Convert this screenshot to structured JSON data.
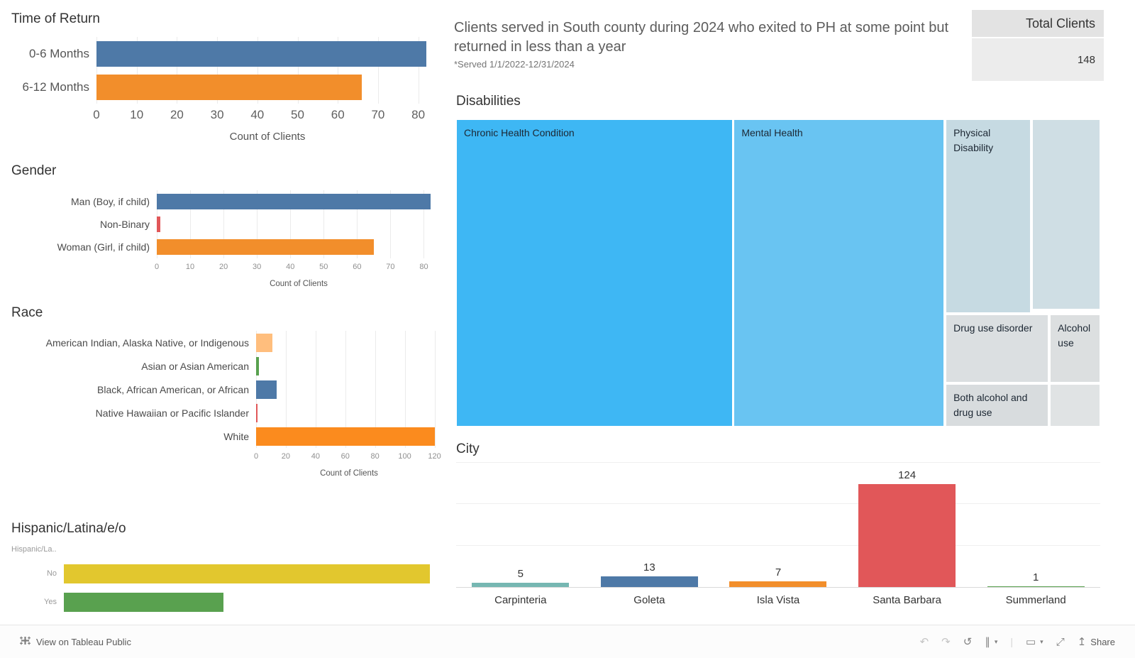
{
  "header": {
    "title": "Clients served in South county during 2024 who exited  to PH at some point but returned in less than a year",
    "subtitle": "*Served 1/1/2022-12/31/2024"
  },
  "total_clients": {
    "label": "Total Clients",
    "value": "148"
  },
  "footer": {
    "view_on_tableau": "View on Tableau Public",
    "share": "Share",
    "icons": {
      "undo": "↶",
      "redo": "↷",
      "replay": "↺",
      "pause": "∥",
      "caret": "▾",
      "divider": "|",
      "display": "▭",
      "fullscreen": "⤢",
      "share_arrow": "↥"
    }
  },
  "chart_data": [
    {
      "type": "bar",
      "orientation": "horizontal",
      "title": "Time of Return",
      "categories": [
        "0-6 Months",
        "6-12 Months"
      ],
      "values": [
        82,
        66
      ],
      "colors": [
        "#4e79a7",
        "#f28e2b"
      ],
      "xlabel": "Count of Clients",
      "xlim": [
        0,
        85
      ],
      "xticks": [
        0,
        10,
        20,
        30,
        40,
        50,
        60,
        70,
        80
      ],
      "grid": true
    },
    {
      "type": "bar",
      "orientation": "horizontal",
      "title": "Gender",
      "categories": [
        "Man (Boy, if child)",
        "Non-Binary",
        "Woman (Girl, if child)"
      ],
      "values": [
        82,
        1,
        65
      ],
      "colors": [
        "#4e79a7",
        "#e15759",
        "#f28e2b"
      ],
      "xlabel": "Count of Clients",
      "xlim": [
        0,
        85
      ],
      "xticks": [
        0,
        10,
        20,
        30,
        40,
        50,
        60,
        70,
        80
      ],
      "grid": true
    },
    {
      "type": "bar",
      "orientation": "horizontal",
      "title": "Race",
      "categories": [
        "American Indian, Alaska Native, or Indigenous",
        "Asian or Asian American",
        "Black, African American, or African",
        "Native Hawaiian or Pacific Islander",
        "White"
      ],
      "values": [
        11,
        2,
        14,
        1,
        120
      ],
      "colors": [
        "#ffbe7d",
        "#59a14f",
        "#4e79a7",
        "#e15759",
        "#fb8b1e"
      ],
      "xlabel": "Count of Clients",
      "xlim": [
        0,
        125
      ],
      "xticks": [
        0,
        20,
        40,
        60,
        80,
        100,
        120
      ],
      "grid": true
    },
    {
      "type": "bar",
      "orientation": "horizontal",
      "title": "Hispanic/Latina/e/o",
      "row_header": "Hispanic/La..",
      "categories": [
        "No",
        "Yes"
      ],
      "values": [
        103,
        45
      ],
      "values_note": "estimated from bar lengths; no axis labels visible",
      "colors": [
        "#e2c72e",
        "#59a14f"
      ],
      "xlabel": "",
      "xlim": [
        0,
        107
      ],
      "xticks": [],
      "grid": false
    },
    {
      "type": "treemap",
      "title": "Disabilities",
      "blocks": [
        {
          "label": "Chronic Health Condition",
          "x": 0,
          "y": 0,
          "w": 42.9,
          "h": 100,
          "color": "#3eb7f4"
        },
        {
          "label": "Mental Health",
          "x": 43.1,
          "y": 0,
          "w": 32.7,
          "h": 100,
          "color": "#69c4f2"
        },
        {
          "label": "Physical Disability",
          "x": 76.0,
          "y": 0,
          "w": 13.2,
          "h": 63.0,
          "color": "#c6dae2"
        },
        {
          "label": "",
          "x": 89.4,
          "y": 0,
          "w": 10.6,
          "h": 61.9,
          "color": "#cfdee4"
        },
        {
          "label": "Drug use disorder",
          "x": 76.0,
          "y": 63.5,
          "w": 16.0,
          "h": 22.2,
          "color": "#dbdfe1"
        },
        {
          "label": "Alcohol use",
          "x": 92.2,
          "y": 63.5,
          "w": 7.8,
          "h": 22.2,
          "color": "#dcdfe0"
        },
        {
          "label": "Both alcohol and drug use",
          "x": 76.0,
          "y": 86.2,
          "w": 16.0,
          "h": 13.8,
          "color": "#d8dcde"
        },
        {
          "label": "",
          "x": 92.2,
          "y": 86.2,
          "w": 7.8,
          "h": 13.8,
          "color": "#e0e3e4"
        }
      ]
    },
    {
      "type": "bar",
      "title": "City",
      "categories": [
        "Carpinteria",
        "Goleta",
        "Isla Vista",
        "Santa Barbara",
        "Summerland"
      ],
      "values": [
        5,
        13,
        7,
        124,
        1
      ],
      "colors": [
        "#76b7b2",
        "#4e79a7",
        "#f28e2b",
        "#e15759",
        "#59a14f"
      ],
      "ylim": [
        0,
        150
      ],
      "gridlines": [
        50,
        100,
        150
      ],
      "show_value_labels": true
    }
  ]
}
